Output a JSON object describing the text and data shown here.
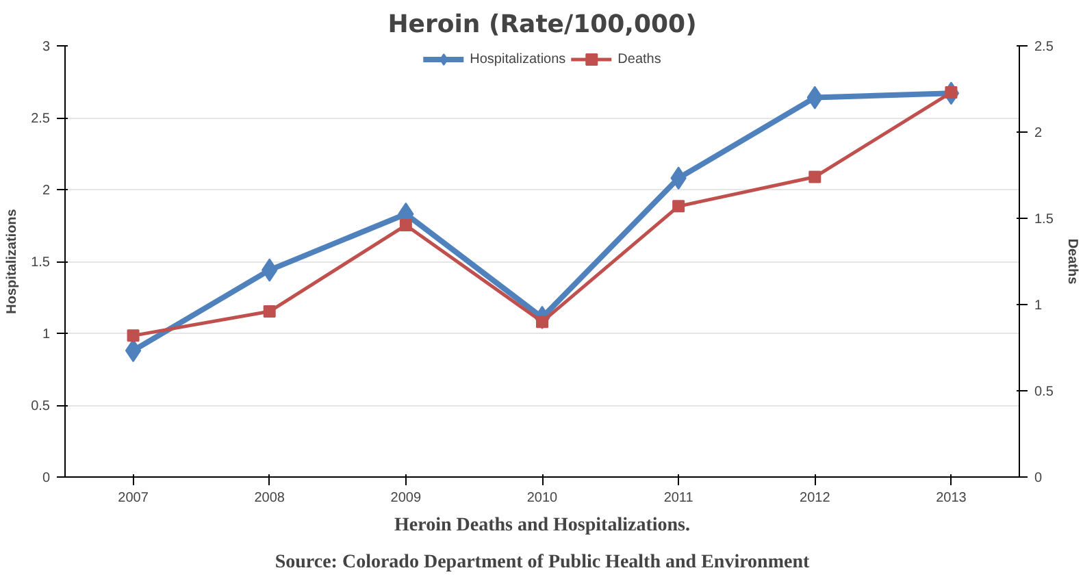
{
  "chart_data": {
    "type": "line",
    "title": "Heroin (Rate/100,000)",
    "ylabel": "Hospitalizations",
    "y2label": "Deaths",
    "categories": [
      "2007",
      "2008",
      "2009",
      "2010",
      "2011",
      "2012",
      "2013"
    ],
    "series": [
      {
        "name": "Hospitalizations",
        "color": "#4f81bd",
        "marker": "diamond",
        "values": [
          0.88,
          1.44,
          1.83,
          1.11,
          2.08,
          2.64,
          2.67
        ]
      },
      {
        "name": "Deaths",
        "color": "#c0504d",
        "marker": "square",
        "axis": "y2",
        "values": [
          0.82,
          0.96,
          1.46,
          0.9,
          1.57,
          1.74,
          2.23
        ]
      }
    ],
    "ylim": [
      0,
      3
    ],
    "yticks": [
      0,
      0.5,
      1,
      1.5,
      2,
      2.5,
      3
    ],
    "y2lim": [
      0,
      2.5
    ],
    "y2ticks": [
      0,
      0.5,
      1,
      1.5,
      2,
      2.5
    ],
    "grid": "y",
    "legend": "top",
    "annotations": [
      "Heroin Deaths and Hospitalizations.",
      "Source: Colorado Department of Public Health and Environment"
    ]
  }
}
